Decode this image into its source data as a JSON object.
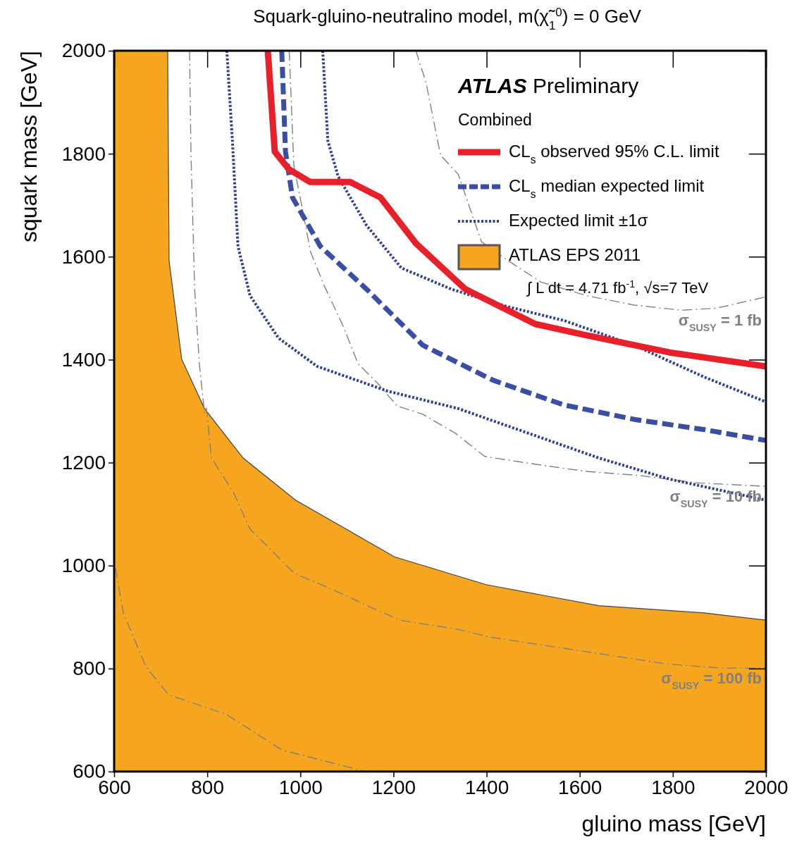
{
  "chart_data": {
    "type": "line",
    "title": "Squark-gluino-neutralino model,  m(χ̃$_{1}$$^{0}$) = 0 GeV",
    "xlabel": "gluino mass [GeV]",
    "ylabel": "squark mass [GeV]",
    "legend_title": "Combined",
    "legend": "top right",
    "annotations": [
      "ATLAS Preliminary",
      "∫ L dt = 4.71 fb$^{-1}$, √s=7 TeV"
    ],
    "xlim": [
      600,
      2000
    ],
    "ylim": [
      600,
      2000
    ],
    "xticks": [
      600,
      800,
      1000,
      1200,
      1400,
      1600,
      1800,
      2000
    ],
    "yticks": [
      600,
      800,
      1000,
      1200,
      1400,
      1600,
      1800,
      2000
    ],
    "series": [
      {
        "type": "area",
        "name": "ATLAS EPS 2011",
        "color": "#f6a51f",
        "x": [
          600,
          715,
          718,
          745,
          794,
          877,
          990,
          1096,
          1202,
          1399,
          1641,
          1868,
          2000
        ],
        "values": [
          2000,
          2000,
          1592,
          1401,
          1305,
          1209,
          1127,
          1072,
          1017,
          963,
          922,
          908,
          894
        ]
      },
      {
        "type": "line",
        "name": "σ$_{SUSY}$ = 1 fb",
        "color": "#808080",
        "line_style": "dashed",
        "x": [
          1248,
          1270,
          1301,
          1339,
          1389,
          1440,
          1516,
          1616,
          1717,
          1818,
          1894,
          2000
        ],
        "values": [
          2000,
          1938,
          1797,
          1760,
          1629,
          1596,
          1551,
          1524,
          1506,
          1496,
          1500,
          1522
        ]
      },
      {
        "type": "line",
        "name": "σ$_{SUSY}$ = 10 fb",
        "color": "#808080",
        "line_style": "dashed",
        "x": [
          976,
          986,
          1007,
          1022,
          1050,
          1092,
          1124,
          1166,
          1208,
          1263,
          1333,
          1396,
          1496,
          1613,
          1729,
          1846,
          2000
        ],
        "values": [
          2000,
          1777,
          1680,
          1609,
          1546,
          1465,
          1392,
          1354,
          1310,
          1294,
          1257,
          1212,
          1198,
          1183,
          1175,
          1161,
          1154
        ]
      },
      {
        "type": "line",
        "name": "σ$_{SUSY}$ = 100 fb",
        "color": "#808080",
        "line_style": "dashed",
        "x": [
          762,
          765,
          773,
          783,
          794,
          798,
          809,
          857,
          891,
          987,
          1068,
          1149,
          1214,
          1339,
          1408,
          1554,
          1787,
          1903,
          2000
        ],
        "values": [
          2000,
          1800,
          1536,
          1392,
          1297,
          1306,
          1209,
          1141,
          1072,
          985,
          954,
          920,
          894,
          876,
          861,
          841,
          809,
          801,
          801
        ]
      },
      {
        "type": "line",
        "color": "#808080",
        "line_style": "dashed",
        "x": [
          600,
          601,
          620,
          668,
          717,
          841,
          960,
          1140
        ],
        "values": [
          1030,
          1004,
          907,
          804,
          749,
          711,
          642,
          600
        ]
      },
      {
        "type": "line",
        "name": "Expected limit ±1σ",
        "color": "#2e3f96",
        "line_style": "dotted",
        "x": [
          842,
          854,
          866,
          892,
          953,
          1036,
          1187,
          1339,
          1490,
          1641,
          1793,
          2000
        ],
        "values": [
          2000,
          1825,
          1620,
          1524,
          1442,
          1387,
          1339,
          1305,
          1257,
          1209,
          1168,
          1127
        ]
      },
      {
        "type": "line",
        "color": "#2e3f96",
        "line_style": "dotted",
        "x": [
          1048,
          1059,
          1081,
          1142,
          1217,
          1324,
          1445,
          1566,
          1717,
          1868,
          2000
        ],
        "values": [
          2000,
          1825,
          1756,
          1661,
          1578,
          1537,
          1503,
          1476,
          1428,
          1366,
          1318
        ]
      },
      {
        "type": "line",
        "name": "CL$_{s}$ median expected limit",
        "color": "#3a4ea6",
        "line_style": "dashed",
        "x": [
          960,
          968,
          983,
          1043,
          1142,
          1263,
          1414,
          1566,
          1717,
          1868,
          2000
        ],
        "values": [
          2000,
          1804,
          1715,
          1620,
          1537,
          1428,
          1360,
          1312,
          1284,
          1264,
          1243
        ]
      },
      {
        "type": "line",
        "name": "CL$_{s}$ observed 95% C.L. limit",
        "color": "#e8202a",
        "line_style": "solid",
        "x": [
          930,
          945,
          975,
          1021,
          1107,
          1172,
          1248,
          1354,
          1505,
          1611,
          1793,
          2000
        ],
        "values": [
          2000,
          1804,
          1770,
          1745,
          1745,
          1715,
          1626,
          1537,
          1469,
          1448,
          1414,
          1387
        ]
      }
    ]
  }
}
